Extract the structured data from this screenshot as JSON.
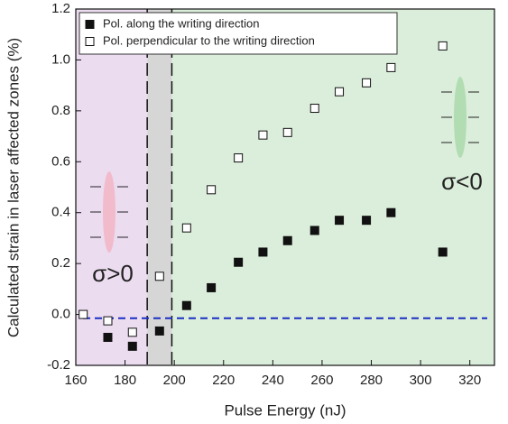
{
  "chart_data": {
    "type": "scatter",
    "xlabel": "Pulse Energy (nJ)",
    "ylabel": "Calculated strain in laser affected zones  (%)",
    "xlim": [
      160,
      330
    ],
    "ylim": [
      -0.2,
      1.2
    ],
    "xticks": [
      160,
      180,
      200,
      220,
      240,
      260,
      280,
      300,
      320
    ],
    "yticks": [
      -0.2,
      {
        "value": 0,
        "label": "0.0"
      },
      0.2,
      0.4,
      0.6,
      0.8,
      {
        "value": 1,
        "label": "1.0"
      },
      1.2
    ],
    "regions": [
      {
        "from": 160,
        "to": 189,
        "color": "#ecdcf0"
      },
      {
        "from": 189,
        "to": 199,
        "color": "#d6d6d6"
      },
      {
        "from": 199,
        "to": 330,
        "color": "#dbeedb"
      }
    ],
    "hline": -0.015,
    "hline_color": "#1a2fc4",
    "annotations": [
      "σ>0",
      "σ<0"
    ],
    "series": [
      {
        "name": "Pol. along the writing direction",
        "color": "#111111",
        "filled": true,
        "x": [
          173,
          183,
          194,
          205,
          215,
          226,
          236,
          246,
          257,
          267,
          278,
          288,
          309
        ],
        "values": [
          -0.09,
          -0.125,
          -0.065,
          0.035,
          0.105,
          0.205,
          0.245,
          0.29,
          0.33,
          0.37,
          0.37,
          0.4,
          0.245
        ]
      },
      {
        "name": "Pol. perpendicular to the writing direction",
        "color": "#111111",
        "filled": false,
        "x": [
          163,
          173,
          183,
          194,
          205,
          215,
          226,
          236,
          246,
          257,
          267,
          278,
          288,
          309
        ],
        "values": [
          0,
          -0.025,
          -0.07,
          0.15,
          0.34,
          0.49,
          0.615,
          0.705,
          0.715,
          0.81,
          0.875,
          0.91,
          0.97,
          1.055
        ]
      }
    ]
  }
}
